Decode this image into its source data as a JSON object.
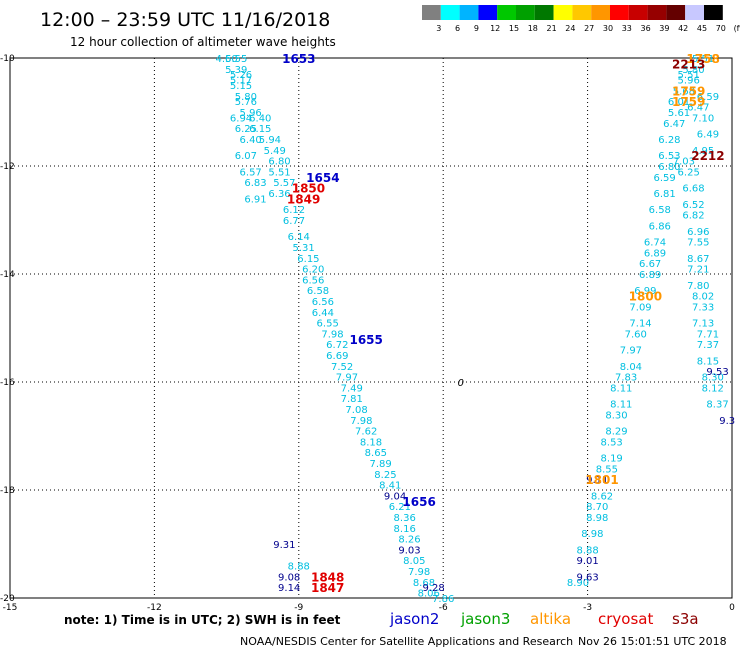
{
  "header": {
    "title": "12:00 – 23:59 UTC 11/16/2018",
    "subtitle": "12 hour collection of altimeter wave heights"
  },
  "legend": {
    "colors": [
      "#808080",
      "#00ffff",
      "#00b4ff",
      "#0000ff",
      "#00c800",
      "#00a000",
      "#007800",
      "#ffff00",
      "#ffc800",
      "#ff9600",
      "#ff0000",
      "#c80000",
      "#960000",
      "#640000",
      "#c8c8ff",
      "#000000"
    ],
    "labels": [
      "3",
      "6",
      "9",
      "12",
      "15",
      "18",
      "21",
      "24",
      "27",
      "30",
      "33",
      "36",
      "39",
      "42",
      "45",
      "70",
      "(ft)"
    ]
  },
  "axes": {
    "lon_ticks": [
      "-15",
      "-12",
      "-9",
      "-6",
      "-3",
      "0"
    ],
    "lat_ticks": [
      "-10",
      "-12",
      "-14",
      "-16",
      "-18",
      "-20"
    ],
    "lon_range": [
      -15,
      0
    ],
    "lat_range": [
      -20,
      -10
    ]
  },
  "tracks": [
    {
      "color": "#00bfe0",
      "points": [
        {
          "lon": -10.5,
          "lat": -10.0,
          "v": "4.60"
        },
        {
          "lon": -10.3,
          "lat": -10.0,
          "v": "5.55"
        },
        {
          "lon": -10.3,
          "lat": -10.2,
          "v": "5.39"
        },
        {
          "lon": -10.2,
          "lat": -10.3,
          "v": "5.26"
        },
        {
          "lon": -10.2,
          "lat": -10.4,
          "v": "5.17"
        },
        {
          "lon": -10.2,
          "lat": -10.5,
          "v": "5.15"
        },
        {
          "lon": -10.1,
          "lat": -10.7,
          "v": "5.80"
        },
        {
          "lon": -10.1,
          "lat": -10.8,
          "v": "5.76"
        },
        {
          "lon": -10.0,
          "lat": -11.0,
          "v": "5.96"
        },
        {
          "lon": -10.2,
          "lat": -11.1,
          "v": "6.94"
        },
        {
          "lon": -9.8,
          "lat": -11.1,
          "v": "6.40"
        },
        {
          "lon": -10.1,
          "lat": -11.3,
          "v": "6.25"
        },
        {
          "lon": -9.8,
          "lat": -11.3,
          "v": "6.15"
        },
        {
          "lon": -9.6,
          "lat": -11.5,
          "v": "5.94"
        },
        {
          "lon": -10.0,
          "lat": -11.5,
          "v": "6.40"
        },
        {
          "lon": -9.5,
          "lat": -11.7,
          "v": "5.49"
        },
        {
          "lon": -10.1,
          "lat": -11.8,
          "v": "6.07"
        },
        {
          "lon": -9.4,
          "lat": -11.9,
          "v": "6.80"
        },
        {
          "lon": -10.0,
          "lat": -12.1,
          "v": "6.57"
        },
        {
          "lon": -9.4,
          "lat": -12.1,
          "v": "5.51"
        },
        {
          "lon": -9.9,
          "lat": -12.3,
          "v": "6.83"
        },
        {
          "lon": -9.3,
          "lat": -12.3,
          "v": "5.57"
        },
        {
          "lon": -9.9,
          "lat": -12.6,
          "v": "6.91"
        },
        {
          "lon": -9.4,
          "lat": -12.5,
          "v": "6.36"
        },
        {
          "lon": -9.1,
          "lat": -12.8,
          "v": "6.12"
        },
        {
          "lon": -9.1,
          "lat": -13.0,
          "v": "6.77"
        },
        {
          "lon": -9.0,
          "lat": -13.3,
          "v": "6.14"
        },
        {
          "lon": -8.9,
          "lat": -13.5,
          "v": "5.31"
        },
        {
          "lon": -8.8,
          "lat": -13.7,
          "v": "6.15"
        },
        {
          "lon": -8.7,
          "lat": -13.9,
          "v": "6.20"
        },
        {
          "lon": -8.7,
          "lat": -14.1,
          "v": "6.56"
        },
        {
          "lon": -8.6,
          "lat": -14.3,
          "v": "6.58"
        },
        {
          "lon": -8.5,
          "lat": -14.5,
          "v": "6.56"
        },
        {
          "lon": -8.5,
          "lat": -14.7,
          "v": "6.44"
        },
        {
          "lon": -8.4,
          "lat": -14.9,
          "v": "6.55"
        },
        {
          "lon": -8.3,
          "lat": -15.1,
          "v": "7.98"
        },
        {
          "lon": -8.2,
          "lat": -15.3,
          "v": "6.72"
        },
        {
          "lon": -8.2,
          "lat": -15.5,
          "v": "6.69"
        },
        {
          "lon": -8.1,
          "lat": -15.7,
          "v": "7.52"
        },
        {
          "lon": -8.0,
          "lat": -15.9,
          "v": "7.97"
        },
        {
          "lon": -7.9,
          "lat": -16.1,
          "v": "7.49"
        },
        {
          "lon": -7.9,
          "lat": -16.3,
          "v": "7.81"
        },
        {
          "lon": -7.8,
          "lat": -16.5,
          "v": "7.08"
        },
        {
          "lon": -7.7,
          "lat": -16.7,
          "v": "7.98"
        },
        {
          "lon": -7.6,
          "lat": -16.9,
          "v": "7.62"
        },
        {
          "lon": -7.5,
          "lat": -17.1,
          "v": "8.18"
        },
        {
          "lon": -7.4,
          "lat": -17.3,
          "v": "8.65"
        },
        {
          "lon": -7.3,
          "lat": -17.5,
          "v": "7.89"
        },
        {
          "lon": -7.2,
          "lat": -17.7,
          "v": "8.25"
        },
        {
          "lon": -7.1,
          "lat": -17.9,
          "v": "8.41"
        },
        {
          "lon": -6.9,
          "lat": -18.3,
          "v": "6.21"
        },
        {
          "lon": -6.8,
          "lat": -18.5,
          "v": "8.36"
        },
        {
          "lon": -6.8,
          "lat": -18.7,
          "v": "8.16"
        },
        {
          "lon": -6.7,
          "lat": -18.9,
          "v": "8.26"
        },
        {
          "lon": -6.6,
          "lat": -19.3,
          "v": "8.05"
        },
        {
          "lon": -6.5,
          "lat": -19.5,
          "v": "7.98"
        },
        {
          "lon": -6.4,
          "lat": -19.7,
          "v": "8.68"
        },
        {
          "lon": -6.3,
          "lat": -19.9,
          "v": "8.06"
        },
        {
          "lon": -6.0,
          "lat": -20.0,
          "v": "7.86"
        },
        {
          "lon": -9.0,
          "lat": -19.4,
          "v": "8.88"
        },
        {
          "lon": -0.6,
          "lat": -10.0,
          "v": "5.51"
        },
        {
          "lon": -0.8,
          "lat": -10.2,
          "v": "5.80"
        },
        {
          "lon": -0.9,
          "lat": -10.3,
          "v": "5.51"
        },
        {
          "lon": -0.9,
          "lat": -10.4,
          "v": "5.96"
        },
        {
          "lon": -1.0,
          "lat": -10.6,
          "v": "5.68"
        },
        {
          "lon": -0.5,
          "lat": -10.7,
          "v": "6.59"
        },
        {
          "lon": -1.1,
          "lat": -10.8,
          "v": "6.01"
        },
        {
          "lon": -0.7,
          "lat": -10.9,
          "v": "6.47"
        },
        {
          "lon": -1.1,
          "lat": -11.0,
          "v": "5.61"
        },
        {
          "lon": -0.6,
          "lat": -11.1,
          "v": "7.10"
        },
        {
          "lon": -1.2,
          "lat": -11.2,
          "v": "6.47"
        },
        {
          "lon": -0.5,
          "lat": -11.4,
          "v": "6.49"
        },
        {
          "lon": -1.3,
          "lat": -11.5,
          "v": "6.28"
        },
        {
          "lon": -0.6,
          "lat": -11.7,
          "v": "4.95"
        },
        {
          "lon": -1.3,
          "lat": -11.8,
          "v": "6.53"
        },
        {
          "lon": -1.0,
          "lat": -11.9,
          "v": "7.03"
        },
        {
          "lon": -1.3,
          "lat": -12.0,
          "v": "6.80"
        },
        {
          "lon": -0.9,
          "lat": -12.1,
          "v": "6.25"
        },
        {
          "lon": -1.4,
          "lat": -12.2,
          "v": "6.59"
        },
        {
          "lon": -0.8,
          "lat": -12.4,
          "v": "6.68"
        },
        {
          "lon": -1.4,
          "lat": -12.5,
          "v": "6.81"
        },
        {
          "lon": -0.8,
          "lat": -12.7,
          "v": "6.52"
        },
        {
          "lon": -1.5,
          "lat": -12.8,
          "v": "6.58"
        },
        {
          "lon": -0.8,
          "lat": -12.9,
          "v": "6.82"
        },
        {
          "lon": -1.5,
          "lat": -13.1,
          "v": "6.86"
        },
        {
          "lon": -0.7,
          "lat": -13.2,
          "v": "6.96"
        },
        {
          "lon": -1.6,
          "lat": -13.4,
          "v": "6.74"
        },
        {
          "lon": -0.7,
          "lat": -13.4,
          "v": "7.55"
        },
        {
          "lon": -1.6,
          "lat": -13.6,
          "v": "6.89"
        },
        {
          "lon": -0.7,
          "lat": -13.7,
          "v": "8.67"
        },
        {
          "lon": -1.7,
          "lat": -13.8,
          "v": "6.67"
        },
        {
          "lon": -0.7,
          "lat": -13.9,
          "v": "7.21"
        },
        {
          "lon": -1.7,
          "lat": -14.0,
          "v": "6.89"
        },
        {
          "lon": -0.7,
          "lat": -14.2,
          "v": "7.80"
        },
        {
          "lon": -1.8,
          "lat": -14.3,
          "v": "6.99"
        },
        {
          "lon": -0.6,
          "lat": -14.4,
          "v": "8.02"
        },
        {
          "lon": -1.9,
          "lat": -14.6,
          "v": "7.09"
        },
        {
          "lon": -0.6,
          "lat": -14.6,
          "v": "7.33"
        },
        {
          "lon": -1.9,
          "lat": -14.9,
          "v": "7.14"
        },
        {
          "lon": -0.6,
          "lat": -14.9,
          "v": "7.13"
        },
        {
          "lon": -2.0,
          "lat": -15.1,
          "v": "7.60"
        },
        {
          "lon": -0.5,
          "lat": -15.1,
          "v": "7.71"
        },
        {
          "lon": -2.1,
          "lat": -15.4,
          "v": "7.97"
        },
        {
          "lon": -0.5,
          "lat": -15.3,
          "v": "7.37"
        },
        {
          "lon": -2.1,
          "lat": -15.7,
          "v": "8.04"
        },
        {
          "lon": -0.5,
          "lat": -15.6,
          "v": "8.15"
        },
        {
          "lon": -2.2,
          "lat": -15.9,
          "v": "7.83"
        },
        {
          "lon": -0.4,
          "lat": -15.9,
          "v": "8.30"
        },
        {
          "lon": -2.3,
          "lat": -16.1,
          "v": "8.11"
        },
        {
          "lon": -0.4,
          "lat": -16.1,
          "v": "8.12"
        },
        {
          "lon": -2.3,
          "lat": -16.4,
          "v": "8.11"
        },
        {
          "lon": -0.3,
          "lat": -16.4,
          "v": "8.37"
        },
        {
          "lon": -2.4,
          "lat": -16.6,
          "v": "8.30"
        },
        {
          "lon": -2.4,
          "lat": -16.9,
          "v": "8.29"
        },
        {
          "lon": -2.5,
          "lat": -17.1,
          "v": "8.53"
        },
        {
          "lon": -2.5,
          "lat": -17.4,
          "v": "8.19"
        },
        {
          "lon": -2.6,
          "lat": -17.6,
          "v": "8.55"
        },
        {
          "lon": -2.7,
          "lat": -18.1,
          "v": "8.62"
        },
        {
          "lon": -2.8,
          "lat": -18.3,
          "v": "8.70"
        },
        {
          "lon": -2.8,
          "lat": -18.5,
          "v": "8.98"
        },
        {
          "lon": -2.9,
          "lat": -18.8,
          "v": "8.98"
        },
        {
          "lon": -3.0,
          "lat": -19.1,
          "v": "8.88"
        },
        {
          "lon": -3.2,
          "lat": -19.7,
          "v": "8.90"
        }
      ]
    },
    {
      "color": "#00008c",
      "points": [
        {
          "lon": -9.3,
          "lat": -19.0,
          "v": "9.31"
        },
        {
          "lon": -9.2,
          "lat": -19.6,
          "v": "9.08"
        },
        {
          "lon": -9.2,
          "lat": -19.8,
          "v": "9.14"
        },
        {
          "lon": -7.0,
          "lat": -18.1,
          "v": "9.04"
        },
        {
          "lon": -6.7,
          "lat": -19.1,
          "v": "9.03"
        },
        {
          "lon": -6.2,
          "lat": -19.8,
          "v": "9.28"
        },
        {
          "lon": -2.8,
          "lat": -17.8,
          "v": "9.11"
        },
        {
          "lon": -3.0,
          "lat": -19.3,
          "v": "9.01"
        },
        {
          "lon": -3.0,
          "lat": -19.6,
          "v": "9.63"
        },
        {
          "lon": -0.3,
          "lat": -15.8,
          "v": "9.53"
        },
        {
          "lon": -0.1,
          "lat": -16.7,
          "v": "9.3"
        }
      ]
    }
  ],
  "time_labels": [
    {
      "lon": -9.0,
      "lat": -10.0,
      "text": "1653",
      "color": "#0000c8"
    },
    {
      "lon": -8.5,
      "lat": -12.2,
      "text": "1654",
      "color": "#0000c8"
    },
    {
      "lon": -8.8,
      "lat": -12.4,
      "text": "1850",
      "color": "#e00000"
    },
    {
      "lon": -8.9,
      "lat": -12.6,
      "text": "1849",
      "color": "#e00000"
    },
    {
      "lon": -7.6,
      "lat": -15.2,
      "text": "1655",
      "color": "#0000c8"
    },
    {
      "lon": -6.5,
      "lat": -18.2,
      "text": "1656",
      "color": "#0000c8"
    },
    {
      "lon": -8.4,
      "lat": -19.6,
      "text": "1848",
      "color": "#e00000"
    },
    {
      "lon": -8.4,
      "lat": -19.8,
      "text": "1847",
      "color": "#e00000"
    },
    {
      "lon": -0.6,
      "lat": -10.0,
      "text": "1758",
      "color": "#ff9600"
    },
    {
      "lon": -0.9,
      "lat": -10.1,
      "text": "2213",
      "color": "#8c0000"
    },
    {
      "lon": -0.9,
      "lat": -10.6,
      "text": "1759",
      "color": "#ff9600"
    },
    {
      "lon": -0.9,
      "lat": -10.8,
      "text": "1759",
      "color": "#ff9600"
    },
    {
      "lon": -0.5,
      "lat": -11.8,
      "text": "2212",
      "color": "#8c0000"
    },
    {
      "lon": -1.8,
      "lat": -14.4,
      "text": "1800",
      "color": "#ff9600"
    },
    {
      "lon": -2.7,
      "lat": -17.8,
      "text": "1801",
      "color": "#ff9600"
    }
  ],
  "marker": {
    "symbol": "0",
    "lon": -5.7,
    "lat": -16.0
  },
  "note": "note:  1) Time is in UTC;  2) SWH is in feet",
  "satellites": [
    {
      "name": "jason2",
      "color": "#0000c8"
    },
    {
      "name": "jason3",
      "color": "#00a000"
    },
    {
      "name": "altika",
      "color": "#ff9600"
    },
    {
      "name": "cryosat",
      "color": "#e00000"
    },
    {
      "name": "s3a",
      "color": "#8c0000"
    }
  ],
  "footer": {
    "credit": "NOAA/NESDIS Center for Satellite Applications and Research",
    "timestamp": "Nov 26 15:01:51 UTC 2018"
  }
}
